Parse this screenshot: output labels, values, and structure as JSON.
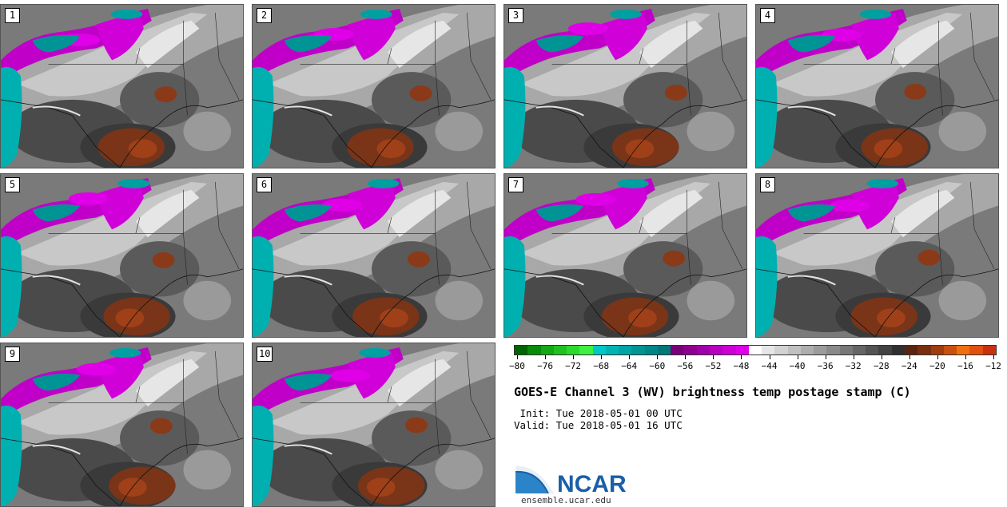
{
  "panels": [
    {
      "label": "1"
    },
    {
      "label": "2"
    },
    {
      "label": "3"
    },
    {
      "label": "4"
    },
    {
      "label": "5"
    },
    {
      "label": "6"
    },
    {
      "label": "7"
    },
    {
      "label": "8"
    },
    {
      "label": "9"
    },
    {
      "label": "10"
    }
  ],
  "colorbar": {
    "colors": [
      "#006400",
      "#0a8a0a",
      "#14a814",
      "#20c020",
      "#2ed82e",
      "#3ff03f",
      "#00c8c8",
      "#00b4b4",
      "#00a4a4",
      "#009494",
      "#008686",
      "#007878",
      "#7a0078",
      "#8c0090",
      "#a000a8",
      "#b800c0",
      "#cc00d4",
      "#e000e8",
      "#ffffff",
      "#e6e6e6",
      "#d2d2d2",
      "#c0c0c0",
      "#aeaeae",
      "#9c9c9c",
      "#8a8a8a",
      "#787878",
      "#666666",
      "#545454",
      "#424242",
      "#303030",
      "#5a2410",
      "#7a2e10",
      "#a03c10",
      "#c85010",
      "#f07010",
      "#e05010",
      "#c83010"
    ],
    "tick_labels": [
      "−80",
      "−76",
      "−72",
      "−68",
      "−64",
      "−60",
      "−56",
      "−52",
      "−48",
      "−44",
      "−40",
      "−36",
      "−32",
      "−28",
      "−24",
      "−20",
      "−16",
      "−12"
    ],
    "min": -80,
    "max": -12
  },
  "title": "GOES-E Channel 3 (WV) brightness temp postage stamp (C)",
  "init": " Init: Tue 2018-05-01 00 UTC",
  "valid": "Valid: Tue 2018-05-01 16 UTC",
  "logo_text": "NCAR",
  "url": "ensemble.ucar.edu"
}
